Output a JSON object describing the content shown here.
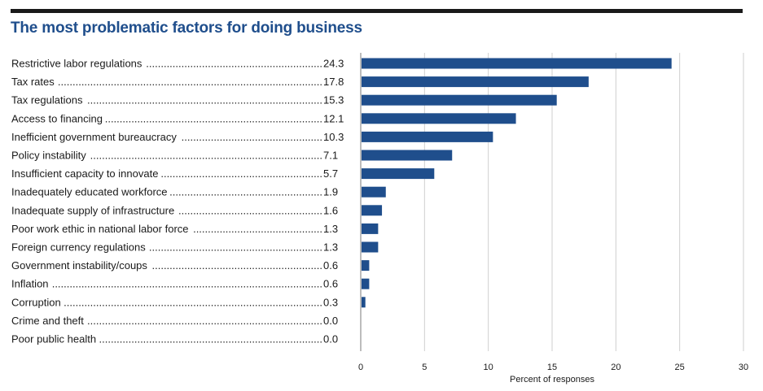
{
  "title": "The most problematic factors for doing business",
  "chart_data": {
    "type": "bar",
    "orientation": "horizontal",
    "title": "The most problematic factors for doing business",
    "xlabel": "Percent of responses",
    "ylabel": "",
    "xlim": [
      0,
      30
    ],
    "xticks": [
      "0",
      "5",
      "10",
      "15",
      "20",
      "25",
      "30"
    ],
    "grid": true,
    "bar_color": "#1f4e8c",
    "categories": [
      "Restrictive labor regulations",
      "Tax rates",
      "Tax regulations",
      "Access to financing",
      "Inefficient government bureaucracy",
      "Policy instability",
      "Insufficient capacity to innovate",
      "Inadequately educated workforce",
      "Inadequate supply of infrastructure",
      "Poor work ethic in national labor force",
      "Foreign currency regulations",
      "Government instability/coups",
      "Inflation",
      "Corruption",
      "Crime and theft",
      "Poor public health"
    ],
    "values": [
      24.3,
      17.8,
      15.3,
      12.1,
      10.3,
      7.1,
      5.7,
      1.9,
      1.6,
      1.3,
      1.3,
      0.6,
      0.6,
      0.3,
      0.0,
      0.0
    ],
    "value_labels": [
      "24.3",
      "17.8",
      "15.3",
      "12.1",
      "10.3",
      "7.1",
      "5.7",
      "1.9",
      "1.6",
      "1.3",
      "1.3",
      "0.6",
      "0.6",
      "0.3",
      "0.0",
      "0.0"
    ]
  }
}
